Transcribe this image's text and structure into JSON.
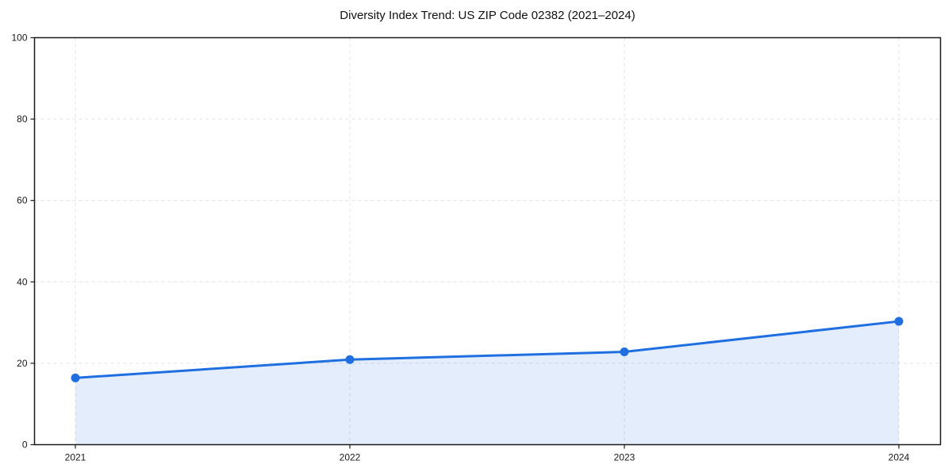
{
  "chart_data": {
    "type": "line",
    "title": "Diversity Index Trend: US ZIP Code 02382 (2021–2024)",
    "x": [
      "2021",
      "2022",
      "2023",
      "2024"
    ],
    "series": [
      {
        "values": [
          16.4,
          20.9,
          22.8,
          30.3
        ]
      }
    ],
    "xlabel": "",
    "ylabel": "",
    "ylim": [
      0,
      100
    ],
    "yticks": [
      0,
      20,
      40,
      60,
      80,
      100
    ],
    "grid": "dashed, both axes",
    "legend_position": "none",
    "area_fill": true,
    "marker": "circle",
    "colors": {
      "line": "#1f6fe0",
      "marker": "#1f6fe0",
      "area_fill": "rgba(31,111,224,0.12)",
      "grid": "#e2e2e2",
      "axis_frame": "#1a1a1a",
      "tick_text": "#1a1a1a",
      "background": "#ffffff"
    }
  }
}
